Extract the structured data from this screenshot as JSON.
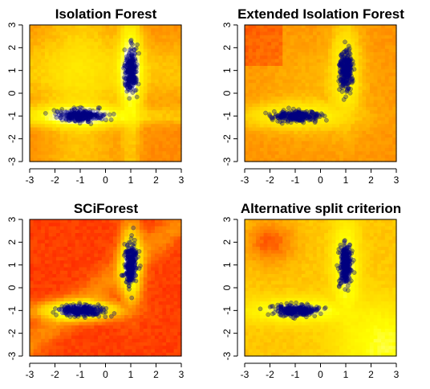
{
  "figure": {
    "background": "#ffffff"
  },
  "chart_data": [
    {
      "type": "heatmap",
      "title": "Isolation Forest",
      "xlabel": "",
      "ylabel": "",
      "xlim": [
        -3,
        3
      ],
      "ylim": [
        -3,
        3
      ],
      "xticks": [
        "-3",
        "-2",
        "-1",
        "0",
        "1",
        "2",
        "3"
      ],
      "yticks": [
        "-3",
        "-2",
        "-1",
        "0",
        "1",
        "2",
        "3"
      ],
      "colormap": [
        "#ff0000",
        "#ff8000",
        "#ffd700",
        "#ffff00",
        "#ffffff"
      ],
      "clusters": [
        {
          "center": [
            -1,
            -1
          ],
          "sd": [
            0.45,
            0.12
          ],
          "color": "#000080"
        },
        {
          "center": [
            1,
            1
          ],
          "sd": [
            0.12,
            0.45
          ],
          "color": "#000080"
        }
      ],
      "style": "axis-aligned"
    },
    {
      "type": "heatmap",
      "title": "Extended Isolation Forest",
      "xlabel": "",
      "ylabel": "",
      "xlim": [
        -3,
        3
      ],
      "ylim": [
        -3,
        3
      ],
      "xticks": [
        "-3",
        "-2",
        "-1",
        "0",
        "1",
        "2",
        "3"
      ],
      "yticks": [
        "-3",
        "-2",
        "-1",
        "0",
        "1",
        "2",
        "3"
      ],
      "colormap": [
        "#ff0000",
        "#ff8000",
        "#ffd700",
        "#ffff00",
        "#ffffff"
      ],
      "clusters": [
        {
          "center": [
            -1,
            -1
          ],
          "sd": [
            0.45,
            0.12
          ],
          "color": "#000080"
        },
        {
          "center": [
            1,
            1
          ],
          "sd": [
            0.12,
            0.45
          ],
          "color": "#000080"
        }
      ],
      "style": "smooth"
    },
    {
      "type": "heatmap",
      "title": "SCiForest",
      "xlabel": "",
      "ylabel": "",
      "xlim": [
        -3,
        3
      ],
      "ylim": [
        -3,
        3
      ],
      "xticks": [
        "-3",
        "-2",
        "-1",
        "0",
        "1",
        "2",
        "3"
      ],
      "yticks": [
        "-3",
        "-2",
        "-1",
        "0",
        "1",
        "2",
        "3"
      ],
      "colormap": [
        "#ff0000",
        "#ff8000",
        "#ffd700",
        "#ffff00",
        "#ffffff"
      ],
      "clusters": [
        {
          "center": [
            -1,
            -1
          ],
          "sd": [
            0.45,
            0.12
          ],
          "color": "#000080"
        },
        {
          "center": [
            1,
            1
          ],
          "sd": [
            0.12,
            0.45
          ],
          "color": "#000080"
        }
      ],
      "style": "sharp"
    },
    {
      "type": "heatmap",
      "title": "Alternative split criterion",
      "xlabel": "",
      "ylabel": "",
      "xlim": [
        -3,
        3
      ],
      "ylim": [
        -3,
        3
      ],
      "xticks": [
        "-3",
        "-2",
        "-1",
        "0",
        "1",
        "2",
        "3"
      ],
      "yticks": [
        "-3",
        "-2",
        "-1",
        "0",
        "1",
        "2",
        "3"
      ],
      "colormap": [
        "#ff0000",
        "#ff8000",
        "#ffd700",
        "#ffff00",
        "#ffffff"
      ],
      "clusters": [
        {
          "center": [
            -1,
            -1
          ],
          "sd": [
            0.45,
            0.12
          ],
          "color": "#000080"
        },
        {
          "center": [
            1,
            1
          ],
          "sd": [
            0.12,
            0.45
          ],
          "color": "#000080"
        }
      ],
      "style": "light"
    }
  ]
}
